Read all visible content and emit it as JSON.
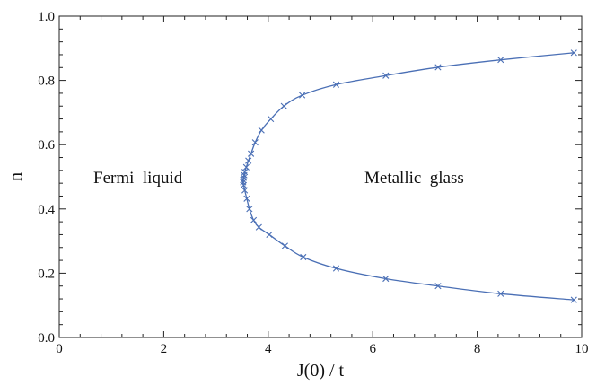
{
  "chart_data": {
    "type": "line",
    "title": "",
    "xlabel": "J(0) / t",
    "ylabel": "n",
    "xlim": [
      0,
      10
    ],
    "ylim": [
      0,
      1
    ],
    "xticks": [
      "0",
      "2",
      "4",
      "6",
      "8",
      "10"
    ],
    "yticks": [
      "0.0",
      "0.2",
      "0.4",
      "0.6",
      "0.8",
      "1.0"
    ],
    "grid": false,
    "series_color": "#4a6fb5",
    "series": [
      {
        "name": "",
        "marker": "x",
        "x": [
          9.85,
          8.45,
          7.25,
          6.25,
          5.3,
          4.65,
          4.3,
          4.05,
          3.87,
          3.75,
          3.67,
          3.62,
          3.58,
          3.55,
          3.54,
          3.53,
          3.52,
          3.52,
          3.53,
          3.55,
          3.59,
          3.64,
          3.72,
          3.82,
          4.02,
          4.32,
          4.67,
          5.3,
          6.25,
          7.25,
          8.45,
          9.85
        ],
        "y": [
          0.886,
          0.864,
          0.841,
          0.815,
          0.787,
          0.754,
          0.72,
          0.68,
          0.645,
          0.607,
          0.572,
          0.55,
          0.53,
          0.515,
          0.505,
          0.497,
          0.49,
          0.483,
          0.474,
          0.458,
          0.432,
          0.4,
          0.365,
          0.343,
          0.32,
          0.285,
          0.25,
          0.215,
          0.183,
          0.16,
          0.136,
          0.117
        ]
      }
    ],
    "annotations": [
      "Fermi  liquid",
      "Metallic  glass"
    ]
  }
}
